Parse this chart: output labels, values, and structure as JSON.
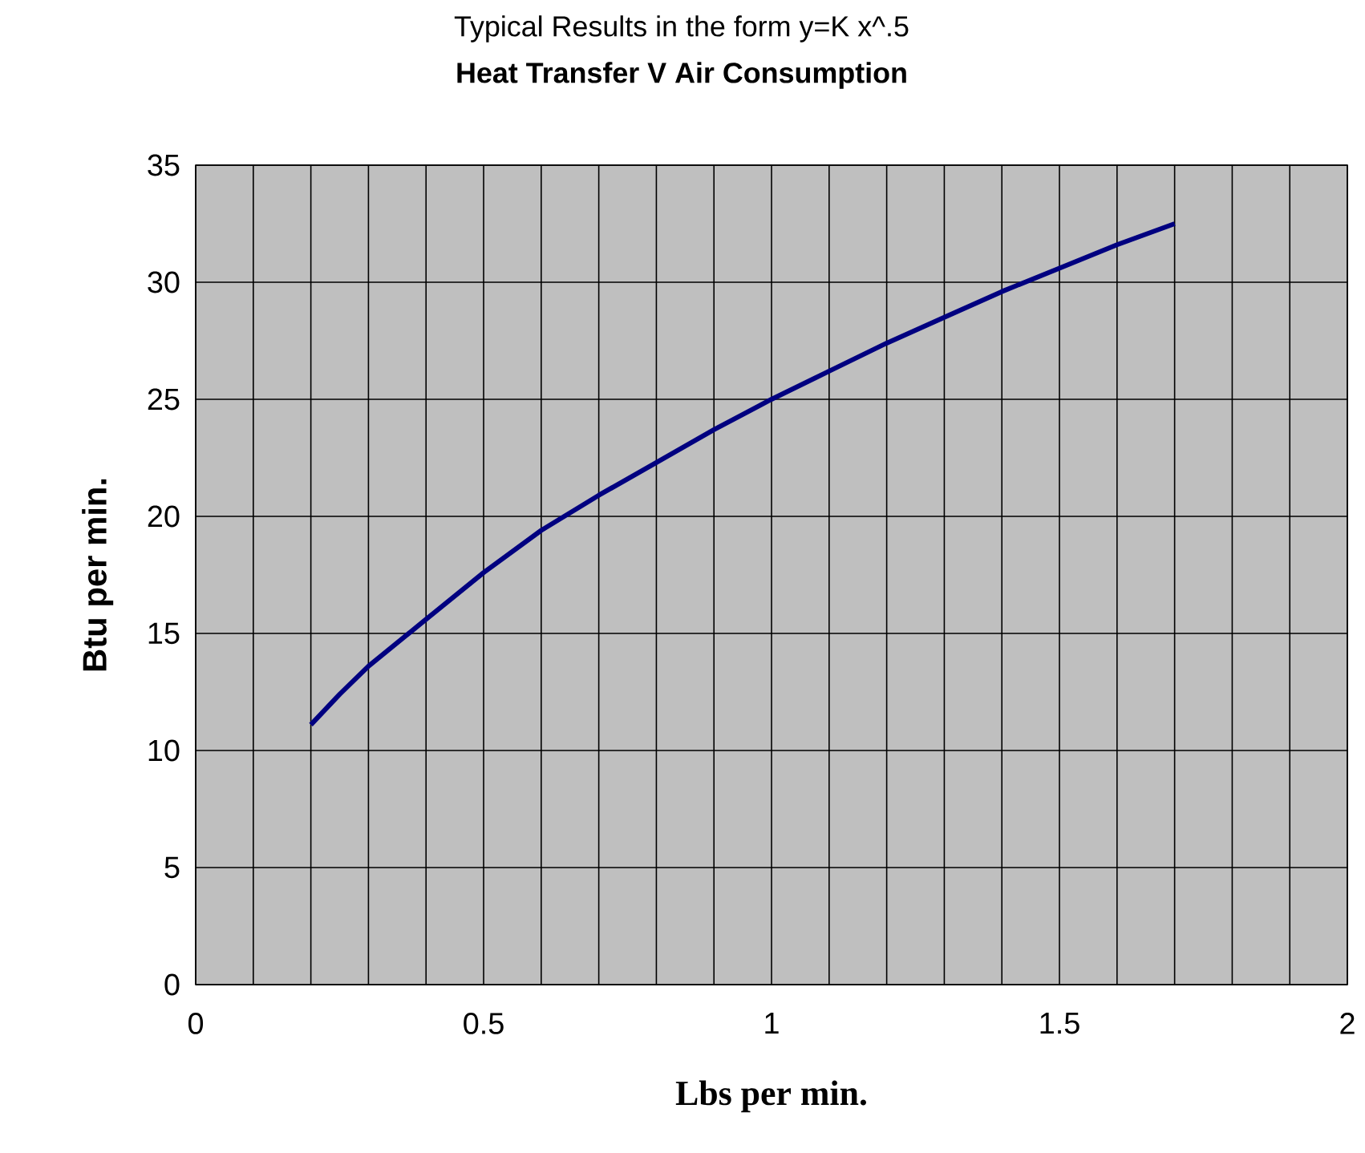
{
  "chart_data": {
    "type": "line",
    "title": "Typical Results in the form y=K x^.5",
    "subtitle": "Heat Transfer V Air Consumption",
    "xlabel": "Lbs per min.",
    "ylabel": "Btu per min.",
    "x": [
      0.2,
      0.25,
      0.3,
      0.4,
      0.5,
      0.6,
      0.7,
      0.8,
      0.9,
      1.0,
      1.1,
      1.2,
      1.3,
      1.4,
      1.5,
      1.6,
      1.7
    ],
    "series": [
      {
        "color": "#000080",
        "values": [
          11.1,
          12.4,
          13.6,
          15.6,
          17.6,
          19.4,
          20.9,
          22.3,
          23.7,
          25.0,
          26.2,
          27.4,
          28.5,
          29.6,
          30.6,
          31.6,
          32.5
        ]
      }
    ],
    "xlim": [
      0,
      2
    ],
    "ylim": [
      0,
      35
    ],
    "xticks": [
      0,
      {
        "value": 0.1,
        "label": null
      },
      {
        "value": 0.2,
        "label": null
      },
      {
        "value": 0.3,
        "label": null
      },
      {
        "value": 0.4,
        "label": null
      },
      0.5,
      {
        "value": 0.6,
        "label": null
      },
      {
        "value": 0.7,
        "label": null
      },
      {
        "value": 0.8,
        "label": null
      },
      {
        "value": 0.9,
        "label": null
      },
      1,
      {
        "value": 1.1,
        "label": null
      },
      {
        "value": 1.2,
        "label": null
      },
      {
        "value": 1.3,
        "label": null
      },
      {
        "value": 1.4,
        "label": null
      },
      1.5,
      {
        "value": 1.6,
        "label": null
      },
      {
        "value": 1.7,
        "label": null
      },
      {
        "value": 1.8,
        "label": null
      },
      {
        "value": 1.9,
        "label": null
      },
      2
    ],
    "yticks": [
      0,
      5,
      10,
      15,
      20,
      25,
      30,
      35
    ],
    "grid": true,
    "marker": "none",
    "line_style": "solid"
  }
}
